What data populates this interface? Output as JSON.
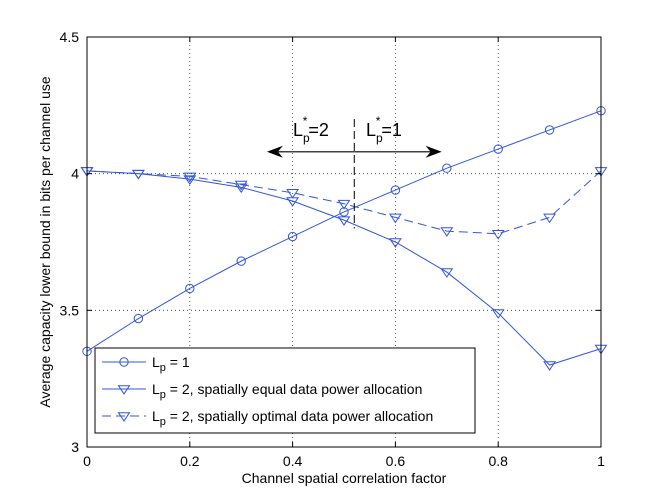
{
  "chart_data": {
    "type": "line",
    "title": "",
    "xlabel": "Channel spatial correlation factor",
    "ylabel": "Average capacity lower bound in bits per channel use",
    "xlim": [
      0,
      1
    ],
    "ylim": [
      3,
      4.5
    ],
    "grid": true,
    "legend_position": "bottom-left",
    "x_ticks": [
      "0",
      "0.2",
      "0.4",
      "0.6",
      "0.8",
      "1"
    ],
    "y_ticks": [
      "3",
      "3.5",
      "4",
      "4.5"
    ],
    "x": [
      0,
      0.1,
      0.2,
      0.3,
      0.4,
      0.5,
      0.6,
      0.7,
      0.8,
      0.9,
      1.0
    ],
    "series": [
      {
        "name": "L_p = 1",
        "color": "#3355dd",
        "marker": "circle",
        "linestyle": "solid",
        "values": [
          3.35,
          3.47,
          3.58,
          3.68,
          3.77,
          3.86,
          3.94,
          4.02,
          4.09,
          4.16,
          4.23
        ]
      },
      {
        "name": "L_p = 2, spatially equal data power allocation",
        "color": "#3355dd",
        "marker": "triangle-down",
        "linestyle": "solid",
        "values": [
          4.01,
          4.0,
          3.98,
          3.95,
          3.9,
          3.83,
          3.75,
          3.64,
          3.49,
          3.3,
          3.36
        ]
      },
      {
        "name": "L_p = 2, spatially optimal data power allocation",
        "color": "#3355dd",
        "marker": "triangle-down",
        "linestyle": "dashed",
        "values": [
          4.01,
          4.0,
          3.99,
          3.96,
          3.93,
          3.89,
          3.84,
          3.79,
          3.78,
          3.84,
          4.01
        ]
      }
    ],
    "annotations": {
      "threshold_x": 0.52,
      "left_label": "L",
      "left_sub": "p",
      "left_sup": "*",
      "left_value": "=2",
      "right_label": "L",
      "right_sub": "p",
      "right_sup": "*",
      "right_value": "=1"
    },
    "legend": [
      {
        "main": "L",
        "sub": "p",
        "rest": " = 1"
      },
      {
        "main": "L",
        "sub": "p",
        "rest": " = 2, spatially equal data power allocation"
      },
      {
        "main": "L",
        "sub": "p",
        "rest": " = 2, spatially optimal data power allocation"
      }
    ]
  }
}
